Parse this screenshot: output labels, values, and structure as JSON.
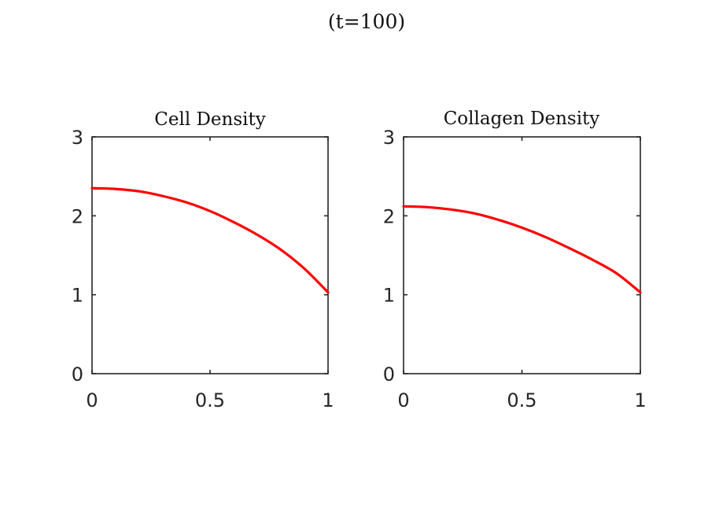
{
  "figure": {
    "title": "(t=100)"
  },
  "chart_data": [
    {
      "type": "line",
      "title": "Cell Density",
      "xlabel": "",
      "ylabel": "",
      "xlim": [
        0,
        1
      ],
      "ylim": [
        0,
        3
      ],
      "xticks": [
        0,
        0.5,
        1
      ],
      "xtick_labels": [
        "0",
        "0.5",
        "1"
      ],
      "yticks": [
        0,
        1,
        2,
        3
      ],
      "ytick_labels": [
        "0",
        "1",
        "2",
        "3"
      ],
      "grid": false,
      "series": [
        {
          "color": "#ff0000",
          "x": [
            0,
            0.1,
            0.2,
            0.3,
            0.4,
            0.5,
            0.6,
            0.7,
            0.8,
            0.9,
            1.0
          ],
          "y": [
            2.35,
            2.34,
            2.31,
            2.25,
            2.17,
            2.06,
            1.92,
            1.76,
            1.57,
            1.33,
            1.03
          ]
        }
      ]
    },
    {
      "type": "line",
      "title": "Collagen Density",
      "xlabel": "",
      "ylabel": "",
      "xlim": [
        0,
        1
      ],
      "ylim": [
        0,
        3
      ],
      "xticks": [
        0,
        0.5,
        1
      ],
      "xtick_labels": [
        "0",
        "0.5",
        "1"
      ],
      "yticks": [
        0,
        1,
        2,
        3
      ],
      "ytick_labels": [
        "0",
        "1",
        "2",
        "3"
      ],
      "grid": false,
      "series": [
        {
          "color": "#ff0000",
          "x": [
            0,
            0.1,
            0.2,
            0.3,
            0.4,
            0.5,
            0.6,
            0.7,
            0.8,
            0.9,
            1.0
          ],
          "y": [
            2.12,
            2.11,
            2.08,
            2.03,
            1.95,
            1.85,
            1.73,
            1.59,
            1.44,
            1.27,
            1.03
          ]
        }
      ]
    }
  ]
}
